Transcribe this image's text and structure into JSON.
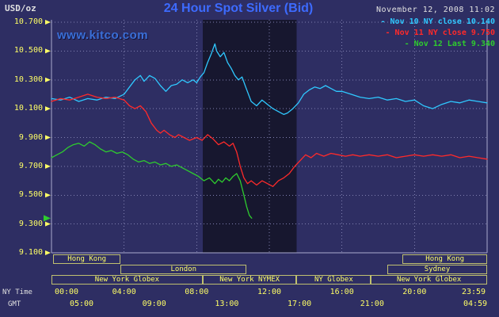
{
  "header": {
    "units_label": "USD/oz",
    "title": "24 Hour Spot Silver (Bid)",
    "datetime": "November 12, 2008 11:02",
    "watermark": "www.kitco.com"
  },
  "legend": {
    "items": [
      {
        "label": "- Nov 10 NY close 10.140",
        "color": "#2fc8ff"
      },
      {
        "label": "- Nov 11 NY close 9.750",
        "color": "#ff2a2a"
      },
      {
        "label": "- Nov 12 Last 9.340",
        "color": "#2ecc2e"
      }
    ]
  },
  "colors": {
    "background": "#2e2e63",
    "band": "#17172f",
    "grid": "#8080b0",
    "axis_line": "#aaaacc",
    "axis_yellow": "#ffff66",
    "text_light": "#e0e0e0",
    "title_blue": "#3d6bff",
    "watermark_blue": "#3a6fd8",
    "session_border": "#c0c070"
  },
  "axes": {
    "y_tick_labels": [
      "10.700",
      "10.500",
      "10.300",
      "10.100",
      "9.900",
      "9.700",
      "9.500",
      "9.300",
      "9.100"
    ],
    "x_ny_labels": [
      "00:00",
      "04:00",
      "08:00",
      "12:00",
      "16:00",
      "20:00",
      "23:59"
    ],
    "x_ny_hours": [
      0,
      4,
      8,
      12,
      16,
      20,
      24
    ],
    "x_gmt_labels": [
      "05:00",
      "09:00",
      "13:00",
      "17:00",
      "21:00",
      "04:59"
    ],
    "ny_time_caption": "NY Time",
    "gmt_caption": "GMT"
  },
  "sessions": [
    {
      "row": 0,
      "start": 0.1,
      "end": 3.8,
      "label": "Hong Kong"
    },
    {
      "row": 0,
      "start": 19.35,
      "end": 24,
      "label": "Hong Kong"
    },
    {
      "row": 1,
      "start": 3.8,
      "end": 10.75,
      "label": "London"
    },
    {
      "row": 1,
      "start": 18.5,
      "end": 24,
      "label": "Sydney"
    },
    {
      "row": 2,
      "start": 0,
      "end": 8.33,
      "label": "New York Globex"
    },
    {
      "row": 2,
      "start": 8.33,
      "end": 13.5,
      "label": "New York NYMEX"
    },
    {
      "row": 2,
      "start": 13.5,
      "end": 17.6,
      "label": "NY Globex"
    },
    {
      "row": 2,
      "start": 17.6,
      "end": 24,
      "label": "New York Globex"
    }
  ],
  "chart_data": {
    "type": "line",
    "title": "24 Hour Spot Silver (Bid)",
    "ylabel": "USD/oz",
    "xlabel": "NY Time (hours)",
    "ylim": [
      9.1,
      10.7
    ],
    "xlim": [
      0,
      24
    ],
    "y_ticks": [
      9.1,
      9.3,
      9.5,
      9.7,
      9.9,
      10.1,
      10.3,
      10.5,
      10.7
    ],
    "x_grid_hours": [
      4,
      8,
      12,
      16,
      20
    ],
    "grid": true,
    "legend_position": "top-right",
    "highlight_band": {
      "start_hour": 8.33,
      "end_hour": 13.5,
      "note": "New York NYMEX session"
    },
    "last_price": 9.34,
    "last_price_color": "#2ecc2e",
    "series": [
      {
        "name": "Nov 10",
        "color": "#2fc8ff",
        "x": [
          0,
          0.5,
          1,
          1.5,
          2,
          2.5,
          3,
          3.5,
          4,
          4.3,
          4.6,
          4.9,
          5.1,
          5.4,
          5.7,
          6,
          6.3,
          6.6,
          6.9,
          7.2,
          7.5,
          7.8,
          8,
          8.2,
          8.4,
          8.6,
          8.8,
          9,
          9.1,
          9.3,
          9.5,
          9.7,
          9.9,
          10.1,
          10.3,
          10.5,
          10.7,
          11,
          11.3,
          11.6,
          11.9,
          12.2,
          12.5,
          12.8,
          13,
          13.3,
          13.6,
          13.9,
          14.2,
          14.5,
          14.8,
          15.1,
          15.4,
          15.7,
          16,
          16.5,
          17,
          17.5,
          18,
          18.5,
          19,
          19.5,
          20,
          20.5,
          21,
          21.5,
          22,
          22.5,
          23,
          23.5,
          24
        ],
        "y": [
          10.17,
          10.16,
          10.18,
          10.15,
          10.17,
          10.16,
          10.18,
          10.17,
          10.2,
          10.25,
          10.3,
          10.33,
          10.29,
          10.33,
          10.31,
          10.26,
          10.22,
          10.26,
          10.27,
          10.3,
          10.28,
          10.3,
          10.28,
          10.32,
          10.35,
          10.42,
          10.48,
          10.55,
          10.5,
          10.46,
          10.49,
          10.42,
          10.38,
          10.33,
          10.3,
          10.32,
          10.25,
          10.15,
          10.12,
          10.16,
          10.13,
          10.1,
          10.08,
          10.06,
          10.07,
          10.1,
          10.14,
          10.2,
          10.23,
          10.25,
          10.24,
          10.26,
          10.24,
          10.22,
          10.22,
          10.2,
          10.18,
          10.17,
          10.18,
          10.16,
          10.17,
          10.15,
          10.16,
          10.12,
          10.1,
          10.13,
          10.15,
          10.14,
          10.16,
          10.15,
          10.14
        ]
      },
      {
        "name": "Nov 11",
        "color": "#ff2a2a",
        "x": [
          0,
          0.5,
          1,
          1.5,
          2,
          2.5,
          3,
          3.5,
          4,
          4.3,
          4.6,
          4.9,
          5.2,
          5.5,
          5.8,
          6,
          6.2,
          6.5,
          6.8,
          7,
          7.3,
          7.6,
          8,
          8.3,
          8.6,
          8.9,
          9.2,
          9.5,
          9.8,
          10,
          10.2,
          10.4,
          10.6,
          10.8,
          11,
          11.3,
          11.6,
          11.9,
          12.2,
          12.5,
          12.8,
          13.1,
          13.4,
          13.7,
          14,
          14.3,
          14.6,
          15,
          15.4,
          15.8,
          16.2,
          16.6,
          17,
          17.5,
          18,
          18.5,
          19,
          19.5,
          20,
          20.5,
          21,
          21.5,
          22,
          22.5,
          23,
          23.5,
          24
        ],
        "y": [
          10.15,
          10.17,
          10.16,
          10.18,
          10.2,
          10.18,
          10.17,
          10.18,
          10.16,
          10.12,
          10.1,
          10.12,
          10.08,
          10.0,
          9.95,
          9.93,
          9.95,
          9.92,
          9.9,
          9.92,
          9.9,
          9.88,
          9.9,
          9.88,
          9.92,
          9.89,
          9.85,
          9.87,
          9.84,
          9.86,
          9.8,
          9.7,
          9.62,
          9.58,
          9.6,
          9.57,
          9.6,
          9.58,
          9.56,
          9.6,
          9.62,
          9.65,
          9.7,
          9.74,
          9.78,
          9.76,
          9.79,
          9.77,
          9.79,
          9.78,
          9.77,
          9.78,
          9.77,
          9.78,
          9.77,
          9.78,
          9.76,
          9.77,
          9.78,
          9.77,
          9.78,
          9.77,
          9.78,
          9.76,
          9.77,
          9.76,
          9.75
        ]
      },
      {
        "name": "Nov 12",
        "color": "#2ecc2e",
        "x": [
          0,
          0.3,
          0.6,
          0.9,
          1.2,
          1.5,
          1.8,
          2.1,
          2.4,
          2.7,
          3,
          3.3,
          3.6,
          3.9,
          4.2,
          4.5,
          4.8,
          5.1,
          5.4,
          5.7,
          6,
          6.3,
          6.6,
          6.9,
          7.2,
          7.5,
          7.8,
          8.1,
          8.4,
          8.7,
          9,
          9.2,
          9.4,
          9.6,
          9.8,
          10,
          10.2,
          10.4,
          10.6,
          10.75,
          10.9,
          11.03
        ],
        "y": [
          9.76,
          9.78,
          9.8,
          9.83,
          9.85,
          9.86,
          9.84,
          9.87,
          9.85,
          9.82,
          9.8,
          9.81,
          9.79,
          9.8,
          9.78,
          9.75,
          9.73,
          9.74,
          9.72,
          9.73,
          9.71,
          9.72,
          9.7,
          9.71,
          9.69,
          9.67,
          9.65,
          9.63,
          9.6,
          9.62,
          9.58,
          9.61,
          9.59,
          9.62,
          9.6,
          9.63,
          9.65,
          9.6,
          9.5,
          9.42,
          9.36,
          9.34
        ]
      }
    ]
  }
}
